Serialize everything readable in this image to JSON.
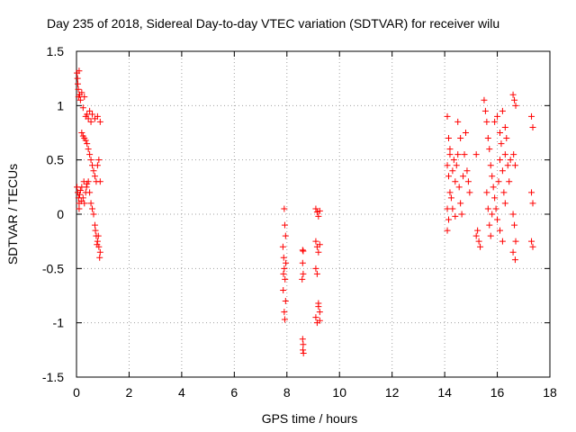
{
  "chart_data": {
    "type": "scatter",
    "title": "Day 235 of 2018, Sidereal Day-to-day VTEC variation (SDTVAR) for receiver wilu",
    "xlabel": "GPS time / hours",
    "ylabel": "SDTVAR / TECUs",
    "xlim": [
      0,
      18
    ],
    "ylim": [
      -1.5,
      1.5
    ],
    "xticks": [
      0,
      2,
      4,
      6,
      8,
      10,
      12,
      14,
      16,
      18
    ],
    "xtick_labels": [
      "0",
      "2",
      "4",
      "6",
      "8",
      "10",
      "12",
      "14",
      "16",
      "18"
    ],
    "yticks": [
      -1.5,
      -1,
      -0.5,
      0,
      0.5,
      1,
      1.5
    ],
    "ytick_labels": [
      "-1.5",
      "-1",
      "-0.5",
      "0",
      "0.5",
      "1",
      "1.5"
    ],
    "grid": true,
    "marker": "+",
    "color": "#ff0000",
    "series": [
      {
        "name": "SDTVAR",
        "points": [
          [
            0.02,
            1.3
          ],
          [
            0.04,
            1.25
          ],
          [
            0.05,
            1.2
          ],
          [
            0.07,
            1.15
          ],
          [
            0.08,
            1.08
          ],
          [
            0.1,
            1.32
          ],
          [
            0.12,
            1.1
          ],
          [
            0.15,
            1.05
          ],
          [
            0.2,
            1.12
          ],
          [
            0.25,
            0.98
          ],
          [
            0.3,
            1.08
          ],
          [
            0.35,
            0.9
          ],
          [
            0.4,
            0.92
          ],
          [
            0.45,
            0.88
          ],
          [
            0.5,
            0.95
          ],
          [
            0.55,
            0.85
          ],
          [
            0.6,
            0.92
          ],
          [
            0.7,
            0.88
          ],
          [
            0.8,
            0.9
          ],
          [
            0.9,
            0.85
          ],
          [
            0.2,
            0.75
          ],
          [
            0.25,
            0.72
          ],
          [
            0.3,
            0.7
          ],
          [
            0.35,
            0.68
          ],
          [
            0.4,
            0.65
          ],
          [
            0.45,
            0.6
          ],
          [
            0.5,
            0.55
          ],
          [
            0.55,
            0.5
          ],
          [
            0.6,
            0.45
          ],
          [
            0.65,
            0.4
          ],
          [
            0.7,
            0.35
          ],
          [
            0.75,
            0.3
          ],
          [
            0.8,
            0.45
          ],
          [
            0.85,
            0.5
          ],
          [
            0.9,
            0.3
          ],
          [
            0.02,
            0.25
          ],
          [
            0.05,
            0.2
          ],
          [
            0.08,
            0.15
          ],
          [
            0.1,
            0.1
          ],
          [
            0.12,
            0.18
          ],
          [
            0.15,
            0.22
          ],
          [
            0.2,
            0.25
          ],
          [
            0.25,
            0.15
          ],
          [
            0.3,
            0.1
          ],
          [
            0.35,
            0.2
          ],
          [
            0.4,
            0.28
          ],
          [
            0.45,
            0.3
          ],
          [
            0.5,
            0.2
          ],
          [
            0.55,
            0.1
          ],
          [
            0.6,
            0.05
          ],
          [
            0.65,
            0.0
          ],
          [
            0.7,
            -0.1
          ],
          [
            0.75,
            -0.2
          ],
          [
            0.8,
            -0.25
          ],
          [
            0.85,
            -0.3
          ],
          [
            0.9,
            -0.35
          ],
          [
            0.88,
            -0.4
          ],
          [
            0.72,
            -0.15
          ],
          [
            0.78,
            -0.28
          ],
          [
            0.83,
            -0.2
          ],
          [
            0.1,
            0.05
          ],
          [
            0.18,
            0.12
          ],
          [
            0.28,
            0.3
          ],
          [
            0.38,
            0.25
          ],
          [
            7.9,
            0.05
          ],
          [
            7.92,
            -0.1
          ],
          [
            7.95,
            -0.2
          ],
          [
            7.85,
            -0.3
          ],
          [
            7.88,
            -0.4
          ],
          [
            7.9,
            -0.5
          ],
          [
            7.93,
            -0.6
          ],
          [
            7.86,
            -0.7
          ],
          [
            7.95,
            -0.8
          ],
          [
            7.9,
            -0.9
          ],
          [
            7.92,
            -0.97
          ],
          [
            7.87,
            -0.55
          ],
          [
            7.96,
            -0.45
          ],
          [
            8.6,
            -0.33
          ],
          [
            8.62,
            -0.34
          ],
          [
            8.6,
            -0.45
          ],
          [
            8.62,
            -0.55
          ],
          [
            8.58,
            -0.6
          ],
          [
            8.6,
            -1.15
          ],
          [
            8.62,
            -1.2
          ],
          [
            8.61,
            -1.25
          ],
          [
            8.63,
            -1.28
          ],
          [
            9.1,
            0.05
          ],
          [
            9.15,
            0.02
          ],
          [
            9.2,
            -0.02
          ],
          [
            9.25,
            0.03
          ],
          [
            9.1,
            -0.25
          ],
          [
            9.15,
            -0.3
          ],
          [
            9.2,
            -0.35
          ],
          [
            9.25,
            -0.28
          ],
          [
            9.1,
            -0.5
          ],
          [
            9.15,
            -0.55
          ],
          [
            9.2,
            -0.85
          ],
          [
            9.25,
            -0.9
          ],
          [
            9.1,
            -0.95
          ],
          [
            9.15,
            -1.0
          ],
          [
            9.2,
            -0.82
          ],
          [
            9.25,
            -0.98
          ],
          [
            14.1,
            0.9
          ],
          [
            14.15,
            0.7
          ],
          [
            14.2,
            0.55
          ],
          [
            14.1,
            0.45
          ],
          [
            14.15,
            0.35
          ],
          [
            14.2,
            0.2
          ],
          [
            14.1,
            0.05
          ],
          [
            14.15,
            -0.05
          ],
          [
            14.1,
            -0.15
          ],
          [
            14.2,
            0.6
          ],
          [
            14.3,
            0.4
          ],
          [
            14.35,
            0.5
          ],
          [
            14.4,
            0.3
          ],
          [
            14.45,
            0.45
          ],
          [
            14.5,
            0.55
          ],
          [
            14.55,
            0.25
          ],
          [
            14.6,
            0.1
          ],
          [
            14.65,
            0.0
          ],
          [
            14.7,
            0.35
          ],
          [
            14.75,
            0.55
          ],
          [
            14.8,
            0.75
          ],
          [
            14.85,
            0.4
          ],
          [
            14.9,
            0.3
          ],
          [
            14.95,
            0.2
          ],
          [
            14.5,
            0.85
          ],
          [
            14.6,
            0.7
          ],
          [
            14.3,
            0.05
          ],
          [
            14.4,
            -0.02
          ],
          [
            14.25,
            0.15
          ],
          [
            15.2,
            0.55
          ],
          [
            15.25,
            -0.15
          ],
          [
            15.3,
            -0.25
          ],
          [
            15.35,
            -0.3
          ],
          [
            15.2,
            -0.2
          ],
          [
            15.5,
            1.05
          ],
          [
            15.55,
            0.95
          ],
          [
            15.6,
            0.85
          ],
          [
            15.65,
            0.7
          ],
          [
            15.7,
            0.6
          ],
          [
            15.75,
            0.45
          ],
          [
            15.8,
            0.35
          ],
          [
            15.85,
            0.25
          ],
          [
            15.9,
            0.15
          ],
          [
            15.95,
            0.05
          ],
          [
            16.0,
            -0.05
          ],
          [
            16.05,
            0.3
          ],
          [
            16.1,
            0.5
          ],
          [
            16.15,
            0.65
          ],
          [
            16.2,
            0.4
          ],
          [
            16.25,
            0.2
          ],
          [
            16.3,
            0.55
          ],
          [
            16.35,
            0.7
          ],
          [
            16.4,
            0.45
          ],
          [
            16.45,
            0.3
          ],
          [
            16.5,
            0.5
          ],
          [
            15.6,
            0.2
          ],
          [
            15.65,
            0.05
          ],
          [
            15.7,
            -0.1
          ],
          [
            15.75,
            -0.2
          ],
          [
            16.1,
            -0.15
          ],
          [
            16.2,
            -0.25
          ],
          [
            16.3,
            0.1
          ],
          [
            15.8,
            0.0
          ],
          [
            15.9,
            0.85
          ],
          [
            16.0,
            0.9
          ],
          [
            16.1,
            0.75
          ],
          [
            16.2,
            0.95
          ],
          [
            16.3,
            0.8
          ],
          [
            16.6,
            1.1
          ],
          [
            16.65,
            1.05
          ],
          [
            16.7,
            1.0
          ],
          [
            16.62,
            0.55
          ],
          [
            16.68,
            0.45
          ],
          [
            16.6,
            0.0
          ],
          [
            16.65,
            -0.1
          ],
          [
            16.7,
            -0.25
          ],
          [
            16.6,
            -0.35
          ],
          [
            16.68,
            -0.42
          ],
          [
            17.3,
            0.9
          ],
          [
            17.35,
            0.8
          ],
          [
            17.3,
            0.2
          ],
          [
            17.35,
            0.1
          ],
          [
            17.3,
            -0.25
          ],
          [
            17.35,
            -0.3
          ]
        ]
      }
    ]
  }
}
